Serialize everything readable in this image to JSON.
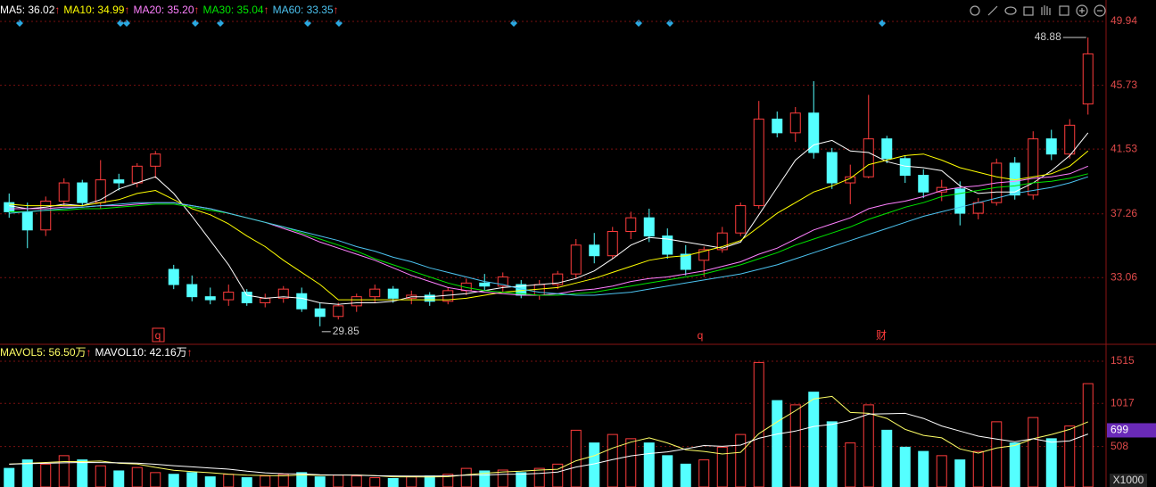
{
  "chart_data": [
    {
      "type": "candlestick",
      "categories": [
        null,
        null,
        null,
        null,
        null,
        null,
        null,
        null,
        null,
        null,
        null,
        null,
        null,
        null,
        null,
        null,
        null,
        null,
        null,
        null,
        null,
        null,
        null,
        null,
        null,
        null,
        null,
        null,
        null,
        null,
        null,
        null,
        null,
        null,
        null,
        null,
        null,
        null,
        null,
        null,
        null,
        null,
        null,
        null,
        null,
        null,
        null,
        null,
        null,
        null,
        null,
        null,
        null,
        null,
        null,
        null,
        null,
        null,
        null,
        null
      ],
      "ohlc": [
        [
          38.0,
          38.6,
          37.0,
          37.4
        ],
        [
          37.4,
          38.0,
          35.0,
          36.2
        ],
        [
          36.2,
          38.4,
          35.8,
          38.1
        ],
        [
          38.1,
          39.6,
          37.8,
          39.3
        ],
        [
          39.3,
          39.5,
          37.8,
          38.0
        ],
        [
          38.0,
          40.8,
          37.6,
          39.5
        ],
        [
          39.5,
          39.9,
          38.8,
          39.3
        ],
        [
          39.3,
          40.6,
          39.0,
          40.4
        ],
        [
          40.4,
          41.4,
          39.6,
          41.2
        ],
        [
          33.6,
          33.9,
          32.3,
          32.6
        ],
        [
          32.6,
          33.2,
          31.5,
          31.8
        ],
        [
          31.8,
          32.4,
          31.3,
          31.6
        ],
        [
          31.6,
          32.6,
          31.2,
          32.1
        ],
        [
          32.1,
          32.3,
          31.2,
          31.4
        ],
        [
          31.4,
          32.0,
          31.1,
          31.7
        ],
        [
          31.7,
          32.5,
          31.4,
          32.3
        ],
        [
          32.0,
          32.4,
          30.8,
          31.0
        ],
        [
          31.0,
          31.4,
          29.85,
          30.5
        ],
        [
          30.5,
          31.4,
          30.3,
          31.2
        ],
        [
          31.2,
          32.0,
          30.8,
          31.8
        ],
        [
          31.8,
          32.6,
          31.4,
          32.3
        ],
        [
          32.3,
          32.5,
          31.4,
          31.7
        ],
        [
          31.7,
          32.2,
          31.3,
          31.9
        ],
        [
          31.9,
          32.1,
          31.2,
          31.5
        ],
        [
          31.5,
          32.4,
          31.3,
          32.2
        ],
        [
          32.2,
          33.0,
          31.9,
          32.7
        ],
        [
          32.7,
          33.3,
          32.2,
          32.5
        ],
        [
          32.5,
          33.4,
          32.1,
          33.1
        ],
        [
          32.6,
          32.9,
          31.7,
          31.9
        ],
        [
          31.9,
          32.9,
          31.6,
          32.6
        ],
        [
          32.6,
          33.5,
          32.3,
          33.3
        ],
        [
          33.3,
          35.6,
          33.0,
          35.2
        ],
        [
          35.2,
          36.0,
          34.0,
          34.5
        ],
        [
          34.5,
          36.4,
          34.3,
          36.1
        ],
        [
          36.1,
          37.4,
          35.6,
          37.0
        ],
        [
          37.0,
          37.6,
          35.4,
          35.8
        ],
        [
          35.8,
          36.3,
          34.3,
          34.6
        ],
        [
          34.6,
          35.2,
          33.2,
          33.6
        ],
        [
          34.2,
          35.1,
          33.1,
          34.9
        ],
        [
          34.9,
          36.4,
          34.7,
          36.0
        ],
        [
          36.0,
          38.0,
          35.8,
          37.8
        ],
        [
          37.8,
          44.7,
          37.6,
          43.5
        ],
        [
          43.5,
          44.0,
          42.3,
          42.6
        ],
        [
          42.6,
          44.3,
          42.0,
          43.9
        ],
        [
          43.9,
          46.0,
          40.9,
          41.3
        ],
        [
          41.3,
          41.6,
          38.9,
          39.3
        ],
        [
          39.3,
          40.5,
          37.9,
          39.7
        ],
        [
          39.7,
          45.1,
          39.6,
          42.2
        ],
        [
          42.2,
          42.4,
          40.6,
          40.9
        ],
        [
          40.9,
          41.1,
          39.3,
          39.8
        ],
        [
          39.8,
          40.2,
          38.3,
          38.7
        ],
        [
          38.7,
          39.5,
          38.1,
          39.0
        ],
        [
          38.9,
          39.4,
          36.5,
          37.3
        ],
        [
          37.3,
          38.3,
          36.9,
          38.0
        ],
        [
          38.0,
          40.9,
          37.8,
          40.6
        ],
        [
          40.6,
          41.0,
          38.2,
          38.5
        ],
        [
          38.5,
          42.7,
          38.2,
          42.2
        ],
        [
          42.2,
          42.8,
          40.8,
          41.2
        ],
        [
          41.2,
          43.5,
          40.9,
          43.1
        ],
        [
          44.5,
          48.88,
          43.8,
          47.8
        ]
      ],
      "up_color": "#ff3c3c",
      "down_color": "#54ffff",
      "series": [
        {
          "name": "MA5",
          "current": 36.02,
          "current_label": ": 36.02",
          "trend": "↑",
          "color": "#ffffff",
          "values": [
            37.8,
            37.6,
            37.7,
            37.9,
            37.8,
            38.2,
            38.9,
            39.3,
            39.7,
            38.6,
            37.1,
            35.5,
            33.9,
            31.9,
            31.7,
            31.8,
            31.7,
            31.4,
            31.3,
            31.4,
            31.4,
            31.5,
            31.8,
            31.8,
            31.9,
            32.0,
            32.2,
            32.4,
            32.5,
            32.6,
            32.7,
            33.0,
            33.5,
            34.3,
            35.2,
            35.7,
            35.6,
            35.4,
            35.2,
            35.0,
            35.4,
            37.2,
            39.0,
            40.8,
            41.8,
            42.1,
            41.4,
            41.3,
            40.7,
            40.4,
            40.3,
            40.1,
            39.1,
            38.6,
            38.7,
            38.7,
            39.3,
            40.1,
            41.1,
            42.6
          ]
        },
        {
          "name": "MA10",
          "current": 34.99,
          "current_label": ": 34.99",
          "trend": "↑",
          "color": "#ffff00",
          "values": [
            37.9,
            37.8,
            37.8,
            37.8,
            37.8,
            38.0,
            38.2,
            38.6,
            38.8,
            38.2,
            37.6,
            37.2,
            36.6,
            35.8,
            35.1,
            34.2,
            33.4,
            32.6,
            31.6,
            31.6,
            31.6,
            31.6,
            31.6,
            31.6,
            31.6,
            31.7,
            31.9,
            32.1,
            32.2,
            32.3,
            32.4,
            32.7,
            33.0,
            33.4,
            33.8,
            34.2,
            34.4,
            34.5,
            34.8,
            35.1,
            35.5,
            36.4,
            37.3,
            38.0,
            38.7,
            39.1,
            39.6,
            40.5,
            40.8,
            41.1,
            41.2,
            40.8,
            40.3,
            40.0,
            39.7,
            39.5,
            39.7,
            39.9,
            40.4,
            41.4
          ]
        },
        {
          "name": "MA20",
          "current": 35.2,
          "current_label": ": 35.20",
          "trend": "↑",
          "color": "#ff80ff",
          "values": [
            37.6,
            37.6,
            37.6,
            37.7,
            37.7,
            37.8,
            37.8,
            37.9,
            38.0,
            38.0,
            37.8,
            37.6,
            37.3,
            37.0,
            36.7,
            36.3,
            35.9,
            35.4,
            35.0,
            34.6,
            34.2,
            33.7,
            33.2,
            32.8,
            32.4,
            32.2,
            32.1,
            32.0,
            31.9,
            31.9,
            32.0,
            32.2,
            32.3,
            32.5,
            32.8,
            33.0,
            33.1,
            33.3,
            33.5,
            33.8,
            34.1,
            34.6,
            35.0,
            35.6,
            36.2,
            36.6,
            37.0,
            37.6,
            37.9,
            38.1,
            38.4,
            38.8,
            39.0,
            39.1,
            39.3,
            39.4,
            39.6,
            39.7,
            39.9,
            40.4
          ]
        },
        {
          "name": "MA30",
          "current": 35.04,
          "current_label": ": 35.04",
          "trend": "↑",
          "color": "#00e600",
          "values": [
            37.4,
            37.4,
            37.5,
            37.5,
            37.6,
            37.6,
            37.7,
            37.8,
            37.9,
            37.9,
            37.7,
            37.5,
            37.3,
            37.0,
            36.7,
            36.4,
            36.0,
            35.6,
            35.2,
            34.8,
            34.3,
            33.9,
            33.5,
            33.1,
            32.7,
            32.4,
            32.2,
            32.1,
            32.0,
            31.9,
            31.9,
            32.0,
            32.1,
            32.3,
            32.5,
            32.7,
            32.9,
            33.1,
            33.3,
            33.6,
            33.9,
            34.3,
            34.7,
            35.2,
            35.6,
            36.0,
            36.4,
            36.9,
            37.3,
            37.7,
            38.0,
            38.4,
            38.6,
            38.8,
            39.0,
            39.1,
            39.3,
            39.4,
            39.6,
            39.9
          ]
        },
        {
          "name": "MA60",
          "current": 33.35,
          "current_label": ": 33.35",
          "trend": "↑",
          "color": "#4cc3f0",
          "values": [
            37.3,
            37.4,
            37.5,
            37.6,
            37.7,
            37.8,
            37.9,
            38.0,
            38.0,
            38.0,
            37.8,
            37.6,
            37.3,
            37.0,
            36.7,
            36.4,
            36.1,
            35.8,
            35.5,
            35.1,
            34.8,
            34.4,
            34.1,
            33.7,
            33.4,
            33.1,
            32.8,
            32.6,
            32.3,
            32.1,
            32.0,
            31.9,
            31.9,
            32.0,
            32.1,
            32.3,
            32.5,
            32.7,
            32.9,
            33.1,
            33.3,
            33.6,
            33.9,
            34.3,
            34.7,
            35.1,
            35.5,
            35.9,
            36.3,
            36.7,
            37.1,
            37.4,
            37.7,
            38.0,
            38.3,
            38.6,
            38.8,
            39.0,
            39.3,
            39.7
          ]
        }
      ],
      "high_label": {
        "value": 48.88,
        "label": "48.88"
      },
      "low_label": {
        "value": 29.85,
        "label": "29.85"
      },
      "events": [
        "q",
        "q",
        "财"
      ],
      "ylim": [
        28.9,
        51.35
      ],
      "yticks": [
        49.94,
        45.73,
        41.53,
        37.26,
        33.06
      ],
      "grid": true
    },
    {
      "type": "bar",
      "values": [
        250,
        350,
        300,
        400,
        350,
        280,
        220,
        260,
        200,
        180,
        200,
        150,
        180,
        140,
        160,
        180,
        200,
        150,
        170,
        160,
        140,
        130,
        150,
        160,
        180,
        250,
        220,
        230,
        200,
        250,
        300,
        700,
        550,
        650,
        600,
        550,
        400,
        300,
        350,
        500,
        650,
        1500,
        1050,
        1000,
        1150,
        800,
        550,
        1000,
        700,
        500,
        450,
        400,
        350,
        450,
        800,
        550,
        850,
        600,
        750,
        1250
      ],
      "series": [
        {
          "name": "MAVOL5",
          "current": 56.5,
          "current_label": ": 56.50万",
          "trend": "↑",
          "color": "#ffff66",
          "values": [
            300,
            310,
            320,
            330,
            330,
            336,
            310,
            302,
            262,
            228,
            212,
            198,
            182,
            170,
            166,
            162,
            172,
            168,
            172,
            172,
            164,
            150,
            150,
            148,
            152,
            174,
            192,
            208,
            216,
            230,
            240,
            340,
            400,
            490,
            560,
            610,
            550,
            470,
            450,
            420,
            440,
            660,
            800,
            930,
            1070,
            1100,
            910,
            900,
            840,
            710,
            640,
            610,
            480,
            430,
            490,
            520,
            600,
            650,
            710,
            800
          ]
        },
        {
          "name": "MAVOL10",
          "current": 42.16,
          "current_label": ": 42.16万",
          "trend": "↑",
          "color": "#ffffff",
          "values": [
            300,
            305,
            310,
            315,
            320,
            318,
            315,
            312,
            298,
            282,
            268,
            254,
            241,
            216,
            197,
            187,
            185,
            175,
            171,
            169,
            163,
            161,
            159,
            160,
            162,
            169,
            171,
            179,
            182,
            191,
            207,
            266,
            304,
            353,
            398,
            425,
            445,
            480,
            520,
            510,
            525,
            605,
            655,
            690,
            745,
            770,
            815,
            890,
            895,
            900,
            840,
            750,
            690,
            630,
            595,
            565,
            600,
            560,
            575,
            655
          ]
        }
      ],
      "marker": 699,
      "unit": "X1000",
      "ylim": [
        30,
        1620
      ],
      "yticks": [
        1515,
        1017,
        508
      ],
      "grid": true
    }
  ]
}
